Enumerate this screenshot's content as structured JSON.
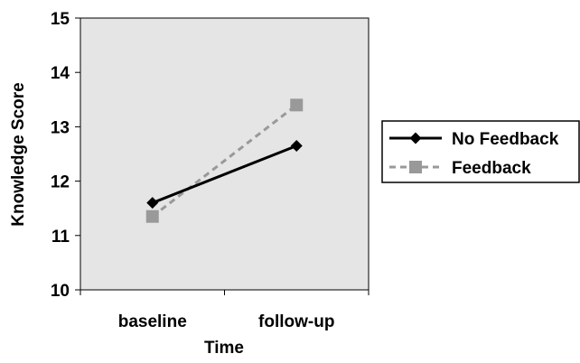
{
  "chart_data": {
    "type": "line",
    "title": "",
    "xlabel": "Time",
    "ylabel": "Knowledge Score",
    "categories": [
      "baseline",
      "follow-up"
    ],
    "ylim": [
      10,
      15
    ],
    "yticks": [
      10,
      11,
      12,
      13,
      14,
      15
    ],
    "grid": false,
    "legend_position": "right",
    "series": [
      {
        "name": "No Feedback",
        "values": [
          11.6,
          12.65
        ],
        "color": "#000000",
        "marker": "diamond",
        "line_style": "solid"
      },
      {
        "name": "Feedback",
        "values": [
          11.35,
          13.4
        ],
        "color": "#999999",
        "marker": "square",
        "line_style": "dashed"
      }
    ],
    "plot_background": "#e5e5e5"
  }
}
